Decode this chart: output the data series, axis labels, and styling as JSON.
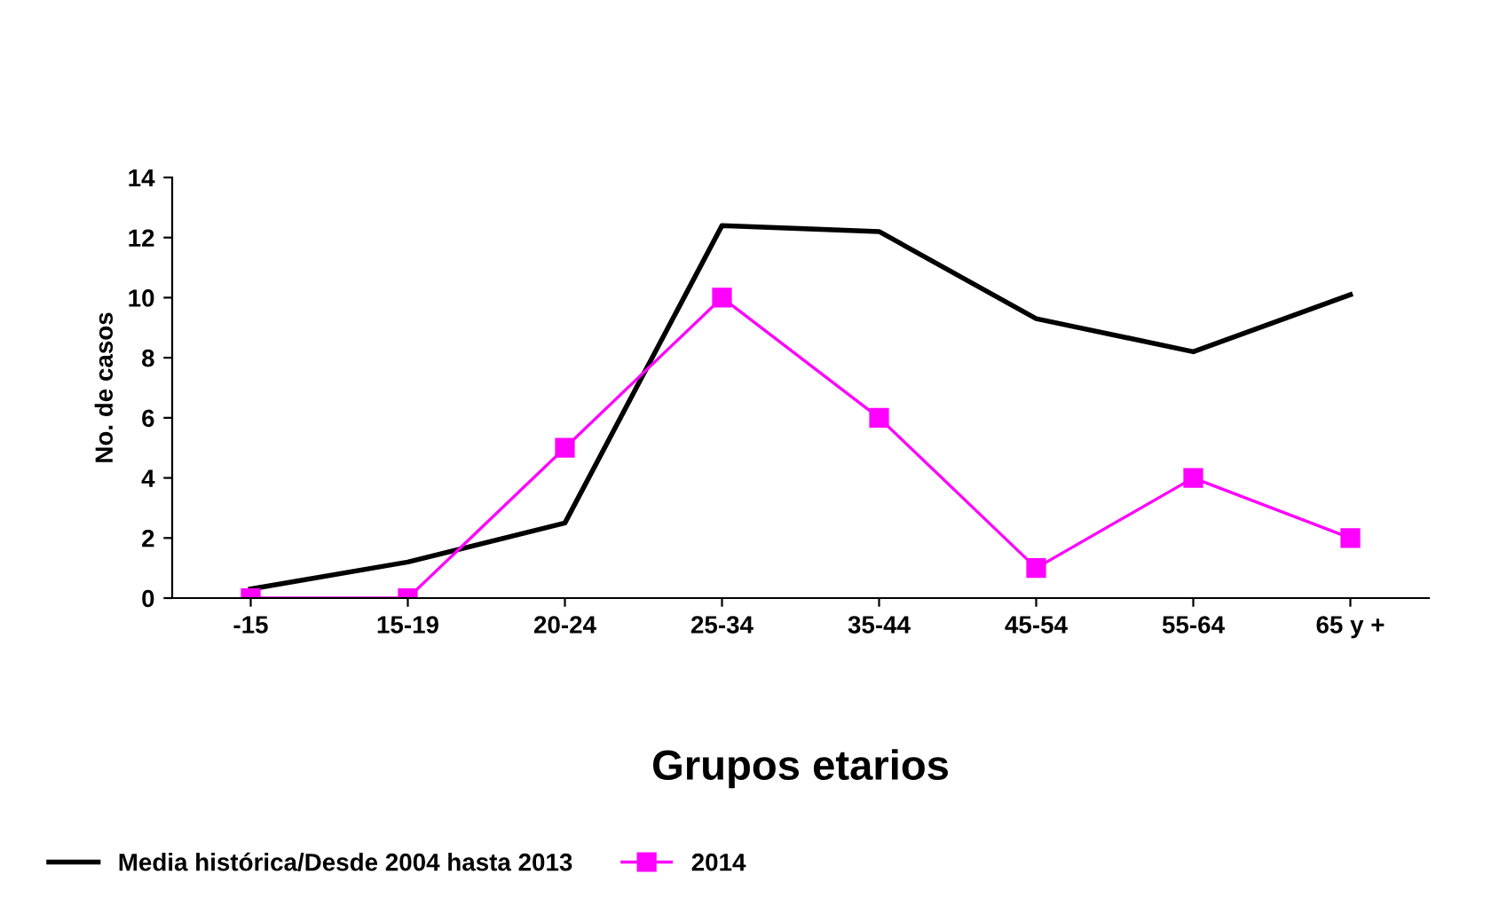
{
  "chart_data": {
    "type": "line",
    "xlabel": "Grupos etarios",
    "ylabel": "No. de casos",
    "categories": [
      "-15",
      "15-19",
      "20-24",
      "25-34",
      "35-44",
      "45-54",
      "55-64",
      "65 y +"
    ],
    "series": [
      {
        "name": "Media histórica/Desde 2004 hasta 2013",
        "color": "#000000",
        "marker": "none",
        "values": [
          0.3,
          1.2,
          2.5,
          12.4,
          12.2,
          9.3,
          8.2,
          10.1
        ]
      },
      {
        "name": "2014",
        "color": "#ff00ff",
        "marker": "square",
        "values": [
          0,
          0,
          5,
          10,
          6,
          1,
          4,
          2
        ]
      }
    ],
    "ylim": [
      0,
      14
    ],
    "yticks": [
      0,
      2,
      4,
      6,
      8,
      10,
      12,
      14
    ],
    "grid": false,
    "legend": "bottom"
  }
}
